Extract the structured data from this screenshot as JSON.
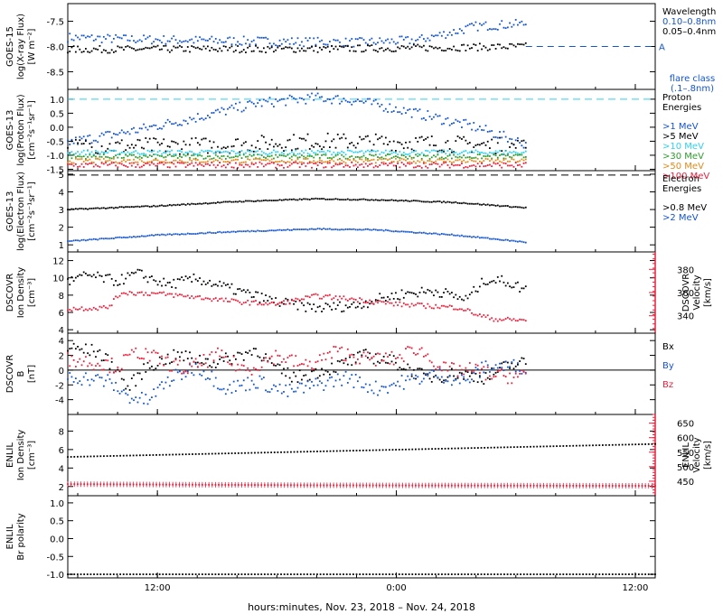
{
  "figure": {
    "xlabel": "hours:minutes, Nov. 23, 2018 – Nov. 24, 2018",
    "x_ticks": [
      {
        "hours": 12,
        "label": "12:00"
      },
      {
        "hours": 24,
        "label": "0:00"
      },
      {
        "hours": 36,
        "label": "12:00"
      }
    ],
    "xlim_hours": [
      7.5,
      37.0
    ],
    "data_end_hours": 30.5
  },
  "colors": {
    "black": "#000000",
    "blue": "#1455cc",
    "cyan": "#2fd0ee",
    "green": "#2c9c2c",
    "orange": "#e08a1a",
    "red": "#e8203c"
  },
  "chart_data": [
    {
      "id": "xray",
      "type": "scatter",
      "ylabel_lines": [
        "GOES-15",
        "log(X-ray Flux)",
        "[W m⁻²]"
      ],
      "ylim": [
        -8.85,
        -7.15
      ],
      "y_ticks": [
        {
          "v": -7.5,
          "label": "-7.5"
        },
        {
          "v": -8.0,
          "label": "-8.0"
        },
        {
          "v": -8.5,
          "label": "-8.5"
        }
      ],
      "legend_title": "Wavelength",
      "legend": [
        {
          "label": "0.10–0.8nm",
          "color": "blue"
        },
        {
          "label": "0.05–0.4nm",
          "color": "black"
        }
      ],
      "flare_class": {
        "label": "A",
        "level": -8.0,
        "title_lines": [
          "flare class",
          "(.1–.8nm)"
        ]
      },
      "series": [
        {
          "color": "blue",
          "keyframes": [
            [
              7.5,
              -7.82
            ],
            [
              10,
              -7.85
            ],
            [
              14,
              -7.88
            ],
            [
              18,
              -7.9
            ],
            [
              22,
              -7.92
            ],
            [
              25,
              -7.88
            ],
            [
              27,
              -7.7
            ],
            [
              28,
              -7.6
            ],
            [
              30.5,
              -7.55
            ]
          ],
          "spread": 0.09
        },
        {
          "color": "black",
          "keyframes": [
            [
              7.5,
              -8.06
            ],
            [
              14,
              -8.05
            ],
            [
              20,
              -8.05
            ],
            [
              25,
              -8.03
            ],
            [
              30.5,
              -8.0
            ]
          ],
          "spread": 0.07
        }
      ]
    },
    {
      "id": "proton",
      "type": "scatter",
      "ylabel_lines": [
        "GOES-13",
        "log(Proton Flux)",
        "[cm⁻²s⁻¹sr⁻¹]"
      ],
      "ylim": [
        -1.55,
        1.35
      ],
      "y_ticks": [
        {
          "v": 1.0,
          "label": "1.0"
        },
        {
          "v": 0.5,
          "label": "0.5"
        },
        {
          "v": 0.0,
          "label": "0.0"
        },
        {
          "v": -0.5,
          "label": "-0.5"
        },
        {
          "v": -1.0,
          "label": "-1.0"
        },
        {
          "v": -1.5,
          "label": "-1.5"
        }
      ],
      "hline": {
        "v": 1.0,
        "color": "cyan",
        "dash": true
      },
      "legend_title": "Proton Energies",
      "legend": [
        {
          "label": ">1 MeV",
          "color": "blue"
        },
        {
          "label": ">5 MeV",
          "color": "black"
        },
        {
          "label": ">10 MeV",
          "color": "cyan"
        },
        {
          "label": ">30 MeV",
          "color": "green"
        },
        {
          "label": ">50 MeV",
          "color": "orange"
        },
        {
          "label": ">100 MeV",
          "color": "red"
        }
      ],
      "series": [
        {
          "color": "blue",
          "keyframes": [
            [
              7.5,
              -0.55
            ],
            [
              11,
              -0.1
            ],
            [
              14,
              0.35
            ],
            [
              17,
              0.85
            ],
            [
              20,
              1.05
            ],
            [
              22,
              0.95
            ],
            [
              25,
              0.5
            ],
            [
              28,
              0.0
            ],
            [
              30.5,
              -0.6
            ]
          ],
          "spread": 0.18
        },
        {
          "color": "black",
          "keyframes": [
            [
              7.5,
              -0.7
            ],
            [
              15,
              -0.65
            ],
            [
              20,
              -0.5
            ],
            [
              25,
              -0.55
            ],
            [
              30.5,
              -0.7
            ]
          ],
          "spread": 0.3
        },
        {
          "color": "cyan",
          "keyframes": [
            [
              7.5,
              -0.9
            ],
            [
              30.5,
              -0.9
            ]
          ],
          "spread": 0.08
        },
        {
          "color": "green",
          "keyframes": [
            [
              7.5,
              -1.05
            ],
            [
              30.5,
              -1.05
            ]
          ],
          "spread": 0.08
        },
        {
          "color": "orange",
          "keyframes": [
            [
              7.5,
              -1.2
            ],
            [
              30.5,
              -1.2
            ]
          ],
          "spread": 0.08
        },
        {
          "color": "red",
          "keyframes": [
            [
              7.5,
              -1.35
            ],
            [
              30.5,
              -1.35
            ]
          ],
          "spread": 0.1
        }
      ]
    },
    {
      "id": "electron",
      "type": "scatter",
      "ylabel_lines": [
        "GOES-13",
        "log(Electron Flux)",
        "[cm⁻²s⁻¹sr⁻¹]"
      ],
      "ylim": [
        0.6,
        5.2
      ],
      "y_ticks": [
        {
          "v": 5,
          "label": "5"
        },
        {
          "v": 4,
          "label": "4"
        },
        {
          "v": 3,
          "label": "3"
        },
        {
          "v": 2,
          "label": "2"
        },
        {
          "v": 1,
          "label": "1"
        }
      ],
      "hline": {
        "v": 4.95,
        "color": "black",
        "dash": true
      },
      "legend_title": "Electron Energies",
      "legend": [
        {
          "label": ">0.8 MeV",
          "color": "black"
        },
        {
          "label": ">2 MeV",
          "color": "blue"
        }
      ],
      "series": [
        {
          "color": "black",
          "keyframes": [
            [
              7.5,
              3.0
            ],
            [
              12,
              3.2
            ],
            [
              16,
              3.45
            ],
            [
              20,
              3.6
            ],
            [
              23,
              3.55
            ],
            [
              27,
              3.4
            ],
            [
              30.5,
              3.1
            ]
          ],
          "spread": 0.03
        },
        {
          "color": "blue",
          "keyframes": [
            [
              7.5,
              1.2
            ],
            [
              12,
              1.55
            ],
            [
              16,
              1.75
            ],
            [
              20,
              1.9
            ],
            [
              23,
              1.85
            ],
            [
              27,
              1.55
            ],
            [
              30.5,
              1.15
            ]
          ],
          "spread": 0.03
        }
      ]
    },
    {
      "id": "dscovr_density",
      "type": "scatter",
      "ylabel_lines": [
        "DSCOVR",
        "Ion Density",
        "[cm⁻³]"
      ],
      "ylim": [
        3.6,
        13.0
      ],
      "y_ticks": [
        {
          "v": 12,
          "label": "12"
        },
        {
          "v": 10,
          "label": "10"
        },
        {
          "v": 8,
          "label": "8"
        },
        {
          "v": 6,
          "label": "6"
        },
        {
          "v": 4,
          "label": "4"
        }
      ],
      "right_axis": {
        "ylabel_lines": [
          "DSCOVR",
          "Velocity",
          "[km/s]"
        ],
        "ylim": [
          325,
          395
        ],
        "y_ticks": [
          {
            "v": 380,
            "label": "380"
          },
          {
            "v": 360,
            "label": "360"
          },
          {
            "v": 340,
            "label": "340"
          }
        ],
        "color": "red"
      },
      "series": [
        {
          "color": "black",
          "axis": "left",
          "keyframes": [
            [
              7.5,
              9.5
            ],
            [
              8.5,
              10.3
            ],
            [
              10,
              9.6
            ],
            [
              11,
              10.5
            ],
            [
              12.5,
              9.2
            ],
            [
              14,
              9.9
            ],
            [
              16,
              8.5
            ],
            [
              18,
              7.2
            ],
            [
              20,
              6.5
            ],
            [
              22,
              6.8
            ],
            [
              23,
              7.5
            ],
            [
              24.5,
              8.2
            ],
            [
              26,
              8.5
            ],
            [
              27.5,
              7.5
            ],
            [
              28.5,
              9.8
            ],
            [
              29.5,
              9.6
            ],
            [
              30.5,
              8.6
            ]
          ],
          "spread": 0.6
        },
        {
          "color": "red",
          "axis": "right",
          "keyframes": [
            [
              7.5,
              346
            ],
            [
              9.5,
              347
            ],
            [
              10.2,
              360
            ],
            [
              12,
              359
            ],
            [
              14,
              356
            ],
            [
              16,
              352
            ],
            [
              18,
              350
            ],
            [
              20,
              357
            ],
            [
              22,
              354
            ],
            [
              24,
              350
            ],
            [
              26,
              348
            ],
            [
              27.2,
              347
            ],
            [
              28.2,
              340
            ],
            [
              29,
              337
            ],
            [
              30.5,
              336
            ]
          ],
          "spread": 2.0
        }
      ]
    },
    {
      "id": "dscovr_b",
      "type": "scatter",
      "ylabel_lines": [
        "DSCOVR",
        "B",
        "[nT]"
      ],
      "ylim": [
        -6.0,
        5.0
      ],
      "y_ticks": [
        {
          "v": 4,
          "label": "4"
        },
        {
          "v": 2,
          "label": "2"
        },
        {
          "v": 0,
          "label": "0"
        },
        {
          "v": -2,
          "label": "-2"
        },
        {
          "v": -4,
          "label": "-4"
        }
      ],
      "zero_line": true,
      "legend": [
        {
          "label": "Bx",
          "color": "black"
        },
        {
          "label": "By",
          "color": "blue"
        },
        {
          "label": "Bz",
          "color": "red"
        }
      ],
      "series": [
        {
          "color": "black",
          "keyframes": [
            [
              7.5,
              3.0
            ],
            [
              9,
              2.5
            ],
            [
              10,
              0.0
            ],
            [
              10.5,
              -2.5
            ],
            [
              11.5,
              0.5
            ],
            [
              13,
              2.0
            ],
            [
              15,
              1.0
            ],
            [
              17,
              2.8
            ],
            [
              18,
              0.0
            ],
            [
              19,
              -1.0
            ],
            [
              21,
              0.5
            ],
            [
              22.5,
              2.0
            ],
            [
              24,
              1.0
            ],
            [
              25.5,
              -1.0
            ],
            [
              27,
              -0.5
            ],
            [
              28.5,
              -1.0
            ],
            [
              29.5,
              0.5
            ],
            [
              30.5,
              1.0
            ]
          ],
          "spread": 0.9
        },
        {
          "color": "blue",
          "keyframes": [
            [
              7.5,
              -0.8
            ],
            [
              9.5,
              -1.5
            ],
            [
              10.5,
              -3.5
            ],
            [
              11.5,
              -4.2
            ],
            [
              12.5,
              -1.5
            ],
            [
              14,
              0.5
            ],
            [
              15.5,
              -2.5
            ],
            [
              17,
              -1.5
            ],
            [
              18.5,
              -3.0
            ],
            [
              20,
              -2.0
            ],
            [
              21.5,
              -1.0
            ],
            [
              23,
              -2.5
            ],
            [
              24.5,
              -1.5
            ],
            [
              26,
              -0.5
            ],
            [
              27.5,
              -1.5
            ],
            [
              28.5,
              0.5
            ],
            [
              30.5,
              0.5
            ]
          ],
          "spread": 1.0
        },
        {
          "color": "red",
          "keyframes": [
            [
              7.5,
              1.5
            ],
            [
              9,
              1.0
            ],
            [
              10,
              0.5
            ],
            [
              11,
              2.5
            ],
            [
              12,
              1.5
            ],
            [
              13.5,
              0.0
            ],
            [
              15,
              2.0
            ],
            [
              16.5,
              0.0
            ],
            [
              18,
              2.0
            ],
            [
              19.5,
              0.5
            ],
            [
              21,
              2.5
            ],
            [
              22.5,
              1.5
            ],
            [
              24,
              1.5
            ],
            [
              25,
              3.0
            ],
            [
              26.5,
              0.0
            ],
            [
              28,
              0.0
            ],
            [
              29,
              -0.8
            ],
            [
              30.5,
              -0.8
            ]
          ],
          "spread": 1.0
        }
      ]
    },
    {
      "id": "enlil_density",
      "type": "scatter",
      "ylabel_lines": [
        "ENLIL",
        "Ion Density",
        "[cm⁻³]"
      ],
      "ylim": [
        1.0,
        9.8
      ],
      "y_ticks": [
        {
          "v": 8,
          "label": "8"
        },
        {
          "v": 6,
          "label": "6"
        },
        {
          "v": 4,
          "label": "4"
        },
        {
          "v": 2,
          "label": "2"
        }
      ],
      "right_axis": {
        "ylabel_lines": [
          "ENLIL",
          "Velocity",
          "[km/s]"
        ],
        "ylim": [
          400,
          680
        ],
        "y_ticks": [
          {
            "v": 650,
            "label": "650"
          },
          {
            "v": 600,
            "label": "600"
          },
          {
            "v": 550,
            "label": "550"
          },
          {
            "v": 500,
            "label": "500"
          },
          {
            "v": 450,
            "label": "450"
          }
        ],
        "color": "red"
      },
      "series": [
        {
          "color": "black",
          "axis": "left",
          "keyframes": [
            [
              7.5,
              5.2
            ],
            [
              37.0,
              6.6
            ]
          ],
          "spread": 0.0
        },
        {
          "color": "red",
          "axis": "right",
          "keyframes": [
            [
              7.5,
              440
            ],
            [
              20,
              436
            ],
            [
              37.0,
              434
            ]
          ],
          "spread": 0.0
        }
      ]
    },
    {
      "id": "enlil_polarity",
      "type": "scatter",
      "ylabel_lines": [
        "ENLIL",
        "Br polarity"
      ],
      "ylim": [
        -1.1,
        1.2
      ],
      "y_ticks": [
        {
          "v": 1.0,
          "label": "1.0"
        },
        {
          "v": 0.5,
          "label": "0.5"
        },
        {
          "v": 0.0,
          "label": "0.0"
        },
        {
          "v": -0.5,
          "label": "-0.5"
        },
        {
          "v": -1.0,
          "label": "-1.0"
        }
      ],
      "series": [
        {
          "color": "black",
          "keyframes": [
            [
              7.5,
              -1.0
            ],
            [
              37.0,
              -1.0
            ]
          ],
          "spread": 0.0
        }
      ]
    }
  ]
}
